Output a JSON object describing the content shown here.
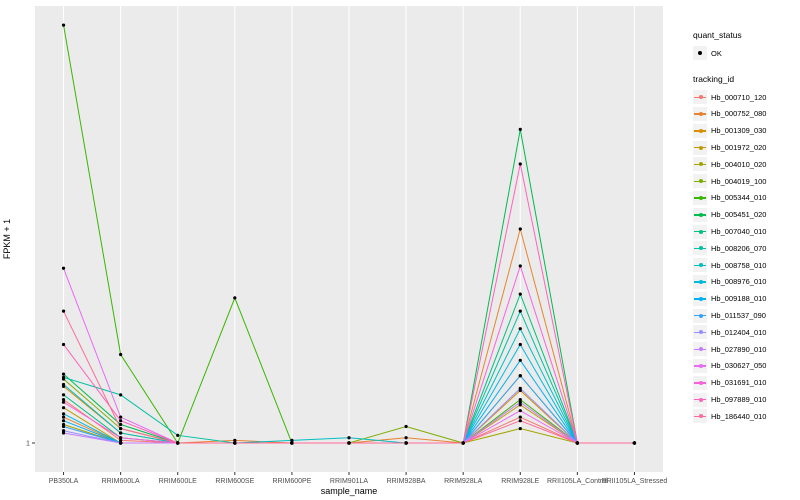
{
  "legend": {
    "quant_status_title": "quant_status",
    "ok_label": "OK",
    "ok_shape": "filled-circle",
    "ok_color": "#000000",
    "tracking_id_title": "tracking_id"
  },
  "chart_data": {
    "type": "line",
    "title": "",
    "xlabel": "sample_name",
    "ylabel": "FPKM + 1",
    "y_scale": "log10",
    "y_ticks": [
      1
    ],
    "ylim": [
      1,
      2000
    ],
    "grid": "vertical major gridlines white on grey panel",
    "legend_position": "right",
    "point_color": "#000000",
    "panel_color": "#EBEBEB",
    "gridline_color": "#FFFFFF",
    "x_categories": [
      "PB350LA",
      "RRIM600LA",
      "RRIM600LE",
      "RRIM600SE",
      "RRIM600PE",
      "RRIM901LA",
      "RRIM928BA",
      "RRIM928LA",
      "RRIM928LE",
      "RRII105LA_Control",
      "RRII105LA_Stressed"
    ],
    "series": [
      {
        "name": "Hb_000710_120",
        "color": "#F8766D",
        "values": [
          2.2,
          1.05,
          1,
          1,
          1,
          1,
          1,
          1,
          1.6,
          1,
          1
        ]
      },
      {
        "name": "Hb_000752_080",
        "color": "#EA8331",
        "values": [
          1.6,
          1,
          1,
          1.05,
          1,
          1,
          1.1,
          1,
          49,
          1,
          1
        ]
      },
      {
        "name": "Hb_001309_030",
        "color": "#D89000",
        "values": [
          2.8,
          1.2,
          1,
          1,
          1,
          1,
          1,
          1,
          2.6,
          1,
          1
        ]
      },
      {
        "name": "Hb_001972_020",
        "color": "#C09B00",
        "values": [
          1.9,
          1,
          1,
          1,
          1,
          1,
          1,
          1,
          2.0,
          1,
          1
        ]
      },
      {
        "name": "Hb_004010_020",
        "color": "#A3A500",
        "values": [
          1.4,
          1,
          1,
          1,
          1,
          1,
          1,
          1,
          1.3,
          1,
          1
        ]
      },
      {
        "name": "Hb_004019_100",
        "color": "#7CAE00",
        "values": [
          3.2,
          1.3,
          1,
          1,
          1,
          1,
          1.35,
          1,
          3.4,
          1,
          1
        ]
      },
      {
        "name": "Hb_005344_010",
        "color": "#39B600",
        "values": [
          2000,
          5,
          1,
          14,
          1,
          1,
          1,
          1,
          2.2,
          1,
          1
        ]
      },
      {
        "name": "Hb_005451_020",
        "color": "#00BB4E",
        "values": [
          3.5,
          1.4,
          1,
          1,
          1,
          1,
          1,
          1,
          300,
          1,
          1
        ]
      },
      {
        "name": "Hb_007040_010",
        "color": "#00BF7D",
        "values": [
          2.4,
          1.1,
          1,
          1,
          1,
          1,
          1,
          1,
          15,
          1,
          1
        ]
      },
      {
        "name": "Hb_008206_070",
        "color": "#00C1A3",
        "values": [
          3.3,
          2.4,
          1.15,
          1,
          1,
          1,
          1,
          1,
          11,
          1,
          1
        ]
      },
      {
        "name": "Hb_008758_010",
        "color": "#00BFC4",
        "values": [
          2.9,
          1.2,
          1,
          1,
          1.05,
          1.1,
          1,
          1,
          8,
          1,
          1
        ]
      },
      {
        "name": "Hb_008976_010",
        "color": "#00BAE0",
        "values": [
          1.7,
          1,
          1,
          1,
          1,
          1,
          1,
          1,
          6,
          1,
          1
        ]
      },
      {
        "name": "Hb_009188_010",
        "color": "#00B0F6",
        "values": [
          1.5,
          1,
          1,
          1,
          1,
          1,
          1,
          1,
          4.5,
          1,
          1
        ]
      },
      {
        "name": "Hb_011537_090",
        "color": "#35A2FF",
        "values": [
          1.35,
          1,
          1,
          1,
          1,
          1,
          1,
          1,
          3.4,
          1,
          1
        ]
      },
      {
        "name": "Hb_012404_010",
        "color": "#9590FF",
        "values": [
          1.25,
          1,
          1,
          1,
          1,
          1,
          1,
          1,
          2.7,
          1,
          1
        ]
      },
      {
        "name": "Hb_027890_010",
        "color": "#C77CFF",
        "values": [
          1.2,
          1,
          1,
          1,
          1,
          1,
          1,
          1,
          2.1,
          1,
          1
        ]
      },
      {
        "name": "Hb_030627_050",
        "color": "#E76BF3",
        "values": [
          24,
          1.6,
          1,
          1,
          1,
          1,
          1,
          1,
          1.8,
          1,
          1
        ]
      },
      {
        "name": "Hb_031691_010",
        "color": "#FA62DB",
        "values": [
          2.1,
          1.1,
          1,
          1,
          1,
          1,
          1,
          1,
          25,
          1,
          1
        ]
      },
      {
        "name": "Hb_097889_010",
        "color": "#FF62BC",
        "values": [
          6,
          1.5,
          1,
          1,
          1,
          1,
          1,
          1,
          160,
          1,
          1
        ]
      },
      {
        "name": "Hb_186440_010",
        "color": "#FF6A98",
        "values": [
          11,
          1.3,
          1,
          1,
          1,
          1,
          1,
          1,
          1.5,
          1,
          1
        ]
      }
    ]
  }
}
